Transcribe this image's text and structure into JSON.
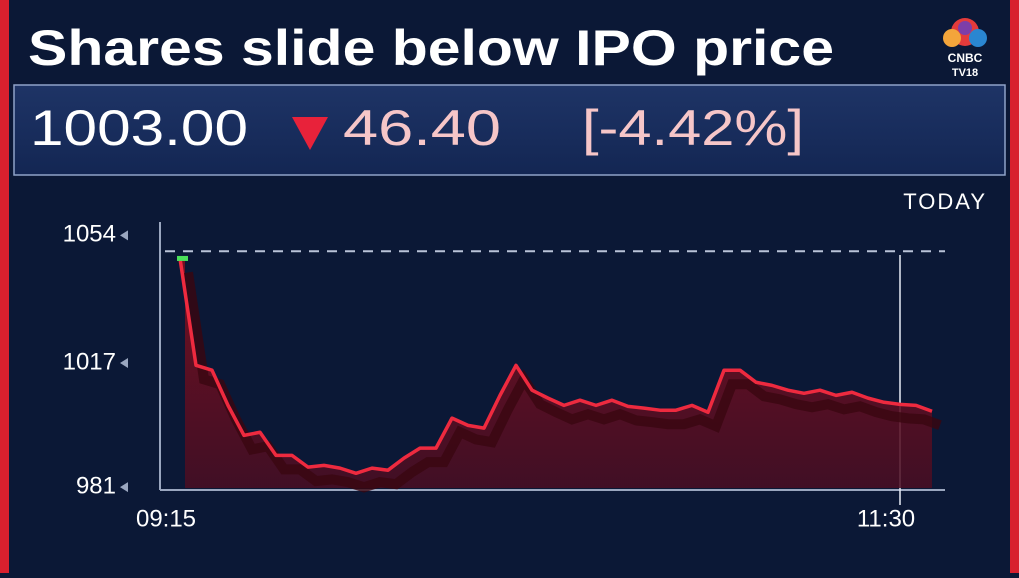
{
  "chart_data": {
    "type": "line",
    "title": "Shares slide below IPO price",
    "logo": [
      "CNBC",
      "TV18"
    ],
    "price": "1003.00",
    "change": "46.40",
    "change_percent": "[-4.42%]",
    "period_label": "TODAY",
    "color": "#ee2a3f",
    "categories": [
      "09:15",
      null,
      null,
      null,
      null,
      null,
      null,
      null,
      null,
      null,
      null,
      null,
      null,
      null,
      null,
      null,
      null,
      null,
      null,
      null,
      null,
      null,
      null,
      null,
      null,
      null,
      null,
      null,
      null,
      null,
      null,
      null,
      null,
      null,
      null,
      null,
      null,
      null,
      null,
      null,
      null,
      null,
      null,
      null,
      null,
      "11:30",
      null,
      null
    ],
    "values": [
      1047.3,
      1016.3,
      1014.9,
      1004.7,
      996.0,
      996.9,
      990.2,
      990.2,
      986.8,
      987.3,
      986.5,
      985.0,
      986.5,
      985.9,
      989.4,
      992.3,
      992.3,
      1001.0,
      998.9,
      998.1,
      1007.6,
      1016.3,
      1009.1,
      1006.8,
      1004.7,
      1006.2,
      1004.7,
      1006.2,
      1004.4,
      1003.9,
      1003.3,
      1003.3,
      1004.7,
      1002.7,
      1014.9,
      1014.9,
      1011.4,
      1010.5,
      1009.1,
      1008.2,
      1009.1,
      1007.6,
      1008.5,
      1006.8,
      1005.6,
      1005.0,
      1004.7,
      1003.0
    ],
    "reference": 1049.4,
    "ylim": [
      979,
      1057
    ],
    "yticks": [
      981,
      1017,
      1054
    ]
  }
}
